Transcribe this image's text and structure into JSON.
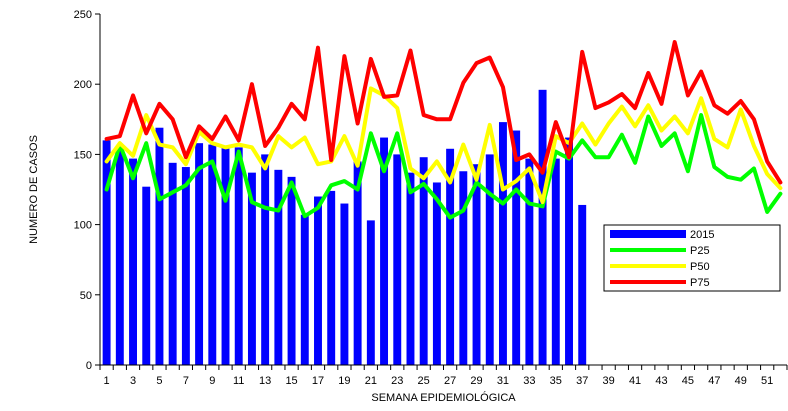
{
  "chart_data": {
    "type": "bar",
    "xlabel": "SEMANA EPIDEMIOLÓGICA",
    "ylabel": "NUMERO DE CASOS",
    "ylim": [
      0,
      250
    ],
    "yticks": [
      0,
      50,
      100,
      150,
      200,
      250
    ],
    "xlim": [
      1,
      52
    ],
    "xtick_labels": [
      "1",
      "3",
      "5",
      "7",
      "9",
      "11",
      "13",
      "15",
      "17",
      "19",
      "21",
      "23",
      "25",
      "27",
      "29",
      "31",
      "33",
      "35",
      "37",
      "39",
      "41",
      "43",
      "45",
      "47",
      "49",
      "51"
    ],
    "grid": false,
    "legend_position": "right",
    "bars": {
      "name": "2015",
      "color": "#0000ff",
      "weeks": [
        1,
        2,
        3,
        4,
        5,
        6,
        7,
        8,
        9,
        10,
        11,
        12,
        13,
        14,
        15,
        16,
        17,
        18,
        19,
        20,
        21,
        22,
        23,
        24,
        25,
        26,
        27,
        28,
        29,
        30,
        31,
        32,
        33,
        34,
        35,
        36,
        37
      ],
      "values": [
        160,
        155,
        147,
        127,
        169,
        144,
        141,
        158,
        157,
        155,
        155,
        137,
        150,
        139,
        134,
        107,
        120,
        124,
        115,
        145,
        103,
        162,
        150,
        137,
        148,
        130,
        154,
        138,
        143,
        150,
        173,
        167,
        147,
        196,
        147,
        162,
        114
      ]
    },
    "series": [
      {
        "name": "P25",
        "color": "#00ff00",
        "values": [
          125,
          157,
          133,
          158,
          118,
          123,
          128,
          140,
          145,
          117,
          152,
          116,
          112,
          110,
          130,
          106,
          112,
          128,
          131,
          125,
          165,
          138,
          165,
          123,
          129,
          118,
          105,
          110,
          130,
          122,
          115,
          125,
          115,
          113,
          152,
          147,
          160,
          148,
          148,
          164,
          144,
          177,
          156,
          165,
          138,
          178,
          141,
          134,
          132,
          140,
          109,
          122
        ]
      },
      {
        "name": "P50",
        "color": "#ffff00",
        "values": [
          145,
          158,
          149,
          178,
          157,
          155,
          143,
          166,
          158,
          155,
          157,
          155,
          140,
          163,
          155,
          162,
          143,
          145,
          163,
          142,
          197,
          192,
          183,
          140,
          133,
          145,
          130,
          157,
          132,
          171,
          125,
          131,
          140,
          116,
          163,
          158,
          172,
          157,
          172,
          184,
          170,
          185,
          167,
          177,
          165,
          190,
          161,
          155,
          182,
          156,
          136,
          126
        ]
      },
      {
        "name": "P75",
        "color": "#ff0000",
        "values": [
          161,
          163,
          192,
          165,
          186,
          175,
          148,
          170,
          161,
          177,
          160,
          200,
          156,
          169,
          186,
          175,
          226,
          146,
          220,
          172,
          218,
          191,
          192,
          224,
          178,
          175,
          175,
          201,
          215,
          219,
          198,
          146,
          150,
          137,
          173,
          148,
          223,
          183,
          187,
          193,
          183,
          208,
          186,
          230,
          192,
          209,
          185,
          179,
          188,
          175,
          145,
          130
        ]
      }
    ]
  }
}
